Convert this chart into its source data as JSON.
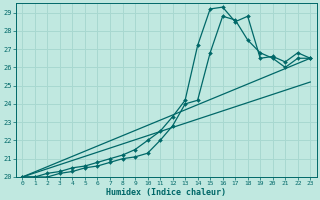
{
  "xlabel": "Humidex (Indice chaleur)",
  "xlim": [
    -0.5,
    23.5
  ],
  "ylim": [
    20,
    29.5
  ],
  "xticks": [
    0,
    1,
    2,
    3,
    4,
    5,
    6,
    7,
    8,
    9,
    10,
    11,
    12,
    13,
    14,
    15,
    16,
    17,
    18,
    19,
    20,
    21,
    22,
    23
  ],
  "yticks": [
    20,
    21,
    22,
    23,
    24,
    25,
    26,
    27,
    28,
    29
  ],
  "bg_color": "#c0e8e0",
  "line_color": "#006868",
  "grid_color": "#a8d8d0",
  "lines": [
    {
      "x": [
        0,
        1,
        2,
        3,
        4,
        5,
        6,
        7,
        8,
        9,
        10,
        11,
        12,
        13,
        14,
        15,
        16,
        17,
        18,
        19,
        20,
        21,
        22,
        23
      ],
      "y": [
        20.0,
        20.0,
        20.2,
        20.3,
        20.5,
        20.6,
        20.8,
        21.0,
        21.2,
        21.5,
        22.0,
        22.5,
        23.3,
        24.2,
        27.2,
        29.2,
        29.3,
        28.5,
        28.8,
        26.5,
        26.6,
        26.3,
        26.8,
        26.5
      ],
      "marker": true,
      "markersize": 2.0
    },
    {
      "x": [
        0,
        1,
        2,
        3,
        4,
        5,
        6,
        7,
        8,
        9,
        10,
        11,
        12,
        13,
        14,
        15,
        16,
        17,
        18,
        19,
        20,
        21,
        22,
        23
      ],
      "y": [
        20.0,
        20.0,
        20.0,
        20.2,
        20.3,
        20.5,
        20.6,
        20.8,
        21.0,
        21.1,
        21.3,
        22.0,
        22.8,
        24.0,
        24.2,
        26.8,
        28.8,
        28.6,
        27.5,
        26.8,
        26.5,
        26.0,
        26.5,
        26.5
      ],
      "marker": true,
      "markersize": 2.0
    },
    {
      "x": [
        0,
        23
      ],
      "y": [
        20.0,
        26.5
      ],
      "marker": false,
      "markersize": 0
    },
    {
      "x": [
        0,
        23
      ],
      "y": [
        20.0,
        25.2
      ],
      "marker": false,
      "markersize": 0
    }
  ]
}
